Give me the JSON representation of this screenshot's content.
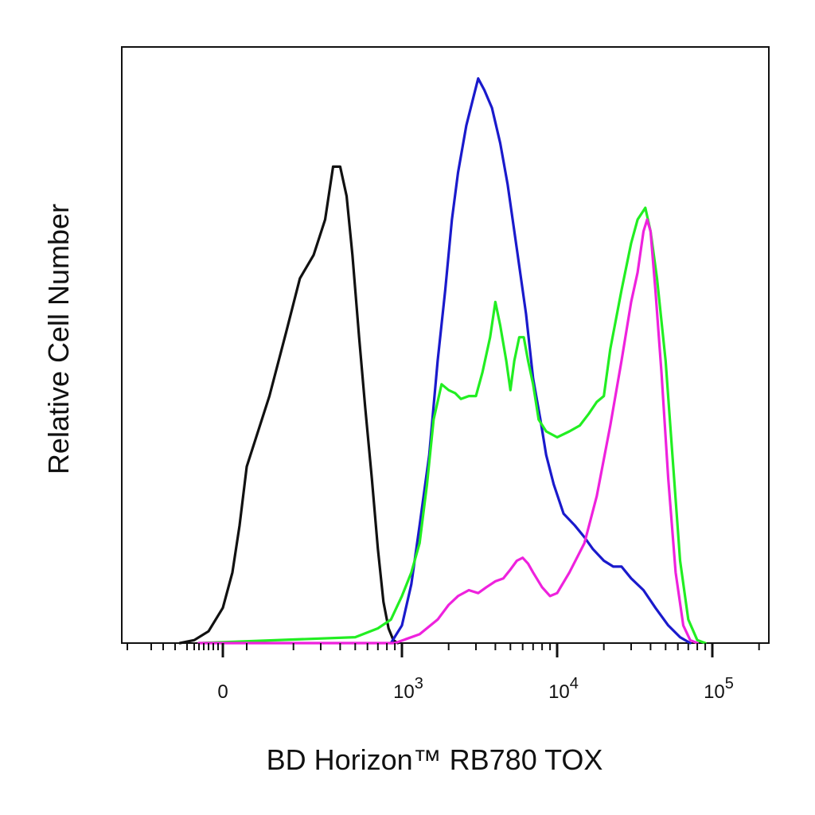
{
  "chart_data": {
    "type": "line",
    "xlabel": "BD Horizon™ RB780 TOX",
    "ylabel": "Relative Cell Number",
    "x_scale": "biexponential",
    "xlim": [
      -600,
      200000
    ],
    "ylim": [
      0,
      100
    ],
    "grid": false,
    "x_ticks": [
      {
        "label": "0",
        "base": "",
        "exp": "",
        "value": 0
      },
      {
        "label": "10^3",
        "base": "10",
        "exp": "3",
        "value": 1000
      },
      {
        "label": "10^4",
        "base": "10",
        "exp": "4",
        "value": 10000
      },
      {
        "label": "10^5",
        "base": "10",
        "exp": "5",
        "value": 100000
      }
    ],
    "minor_ticks": [
      -500,
      -400,
      -300,
      -250,
      -200,
      -150,
      -120,
      -100,
      -80,
      -60,
      -40,
      -20,
      100,
      200,
      300,
      400,
      500,
      600,
      700,
      800,
      900,
      2000,
      3000,
      4000,
      5000,
      6000,
      7000,
      8000,
      9000,
      20000,
      30000,
      40000,
      50000,
      60000,
      70000,
      80000,
      90000,
      200000
    ],
    "series": [
      {
        "color": "#111111",
        "points": [
          [
            -180,
            0
          ],
          [
            -120,
            0.5
          ],
          [
            -60,
            2
          ],
          [
            0,
            6
          ],
          [
            40,
            12
          ],
          [
            70,
            20
          ],
          [
            100,
            30
          ],
          [
            140,
            42
          ],
          [
            180,
            53
          ],
          [
            220,
            62
          ],
          [
            270,
            66
          ],
          [
            320,
            72
          ],
          [
            360,
            81
          ],
          [
            400,
            81
          ],
          [
            440,
            76
          ],
          [
            480,
            66
          ],
          [
            530,
            52
          ],
          [
            580,
            40
          ],
          [
            640,
            28
          ],
          [
            700,
            16
          ],
          [
            760,
            7
          ],
          [
            820,
            2.5
          ],
          [
            880,
            0.5
          ],
          [
            940,
            0
          ]
        ]
      },
      {
        "color": "#1a1acc",
        "points": [
          [
            850,
            0
          ],
          [
            1000,
            3
          ],
          [
            1150,
            10
          ],
          [
            1300,
            20
          ],
          [
            1500,
            32
          ],
          [
            1700,
            48
          ],
          [
            1900,
            60
          ],
          [
            2100,
            72
          ],
          [
            2300,
            80
          ],
          [
            2600,
            88
          ],
          [
            2900,
            93
          ],
          [
            3100,
            96
          ],
          [
            3400,
            94
          ],
          [
            3800,
            91
          ],
          [
            4300,
            85
          ],
          [
            4800,
            78
          ],
          [
            5500,
            67
          ],
          [
            6300,
            56
          ],
          [
            7000,
            45
          ],
          [
            7800,
            38
          ],
          [
            8500,
            32
          ],
          [
            9500,
            27
          ],
          [
            11000,
            22
          ],
          [
            13000,
            20
          ],
          [
            15000,
            18
          ],
          [
            17000,
            16
          ],
          [
            20000,
            14
          ],
          [
            23000,
            13
          ],
          [
            26000,
            13
          ],
          [
            30000,
            11
          ],
          [
            36000,
            9
          ],
          [
            43000,
            6
          ],
          [
            52000,
            3
          ],
          [
            62000,
            1
          ],
          [
            72000,
            0
          ]
        ]
      },
      {
        "color": "#22ee22",
        "points": [
          [
            -100,
            0
          ],
          [
            500,
            1
          ],
          [
            700,
            2.5
          ],
          [
            850,
            4
          ],
          [
            1000,
            8
          ],
          [
            1150,
            12
          ],
          [
            1300,
            17
          ],
          [
            1450,
            27
          ],
          [
            1600,
            38
          ],
          [
            1800,
            44
          ],
          [
            2000,
            43
          ],
          [
            2200,
            42.5
          ],
          [
            2400,
            41.5
          ],
          [
            2700,
            42
          ],
          [
            3000,
            42
          ],
          [
            3300,
            46
          ],
          [
            3700,
            52
          ],
          [
            4000,
            58
          ],
          [
            4300,
            54
          ],
          [
            4700,
            48
          ],
          [
            5000,
            43
          ],
          [
            5300,
            48
          ],
          [
            5700,
            52
          ],
          [
            6100,
            52
          ],
          [
            6500,
            48
          ],
          [
            7000,
            44
          ],
          [
            7600,
            38
          ],
          [
            8500,
            36
          ],
          [
            10000,
            35
          ],
          [
            12000,
            36
          ],
          [
            14000,
            37
          ],
          [
            16000,
            39
          ],
          [
            18000,
            41
          ],
          [
            20000,
            42
          ],
          [
            22000,
            50
          ],
          [
            26000,
            60
          ],
          [
            30000,
            68
          ],
          [
            33000,
            72
          ],
          [
            37000,
            74
          ],
          [
            40000,
            70
          ],
          [
            44000,
            62
          ],
          [
            50000,
            48
          ],
          [
            56000,
            30
          ],
          [
            62000,
            14
          ],
          [
            70000,
            4
          ],
          [
            80000,
            0.5
          ],
          [
            90000,
            0
          ]
        ]
      },
      {
        "color": "#ee22dd",
        "points": [
          [
            -100,
            0
          ],
          [
            900,
            0
          ],
          [
            1300,
            1.5
          ],
          [
            1700,
            4
          ],
          [
            2000,
            6.5
          ],
          [
            2300,
            8
          ],
          [
            2700,
            9
          ],
          [
            3100,
            8.5
          ],
          [
            3500,
            9.5
          ],
          [
            4000,
            10.5
          ],
          [
            4500,
            11
          ],
          [
            5000,
            12.5
          ],
          [
            5500,
            14
          ],
          [
            6000,
            14.5
          ],
          [
            6500,
            13.5
          ],
          [
            7000,
            12
          ],
          [
            8000,
            9.5
          ],
          [
            9000,
            8
          ],
          [
            10000,
            8.5
          ],
          [
            12000,
            12
          ],
          [
            15000,
            17
          ],
          [
            18000,
            25
          ],
          [
            22000,
            37
          ],
          [
            26000,
            48
          ],
          [
            30000,
            58
          ],
          [
            33000,
            63
          ],
          [
            36000,
            70
          ],
          [
            38000,
            72
          ],
          [
            40000,
            70
          ],
          [
            43000,
            60
          ],
          [
            47000,
            46
          ],
          [
            52000,
            28
          ],
          [
            58000,
            12
          ],
          [
            65000,
            3
          ],
          [
            72000,
            0.5
          ],
          [
            80000,
            0
          ]
        ]
      }
    ]
  }
}
